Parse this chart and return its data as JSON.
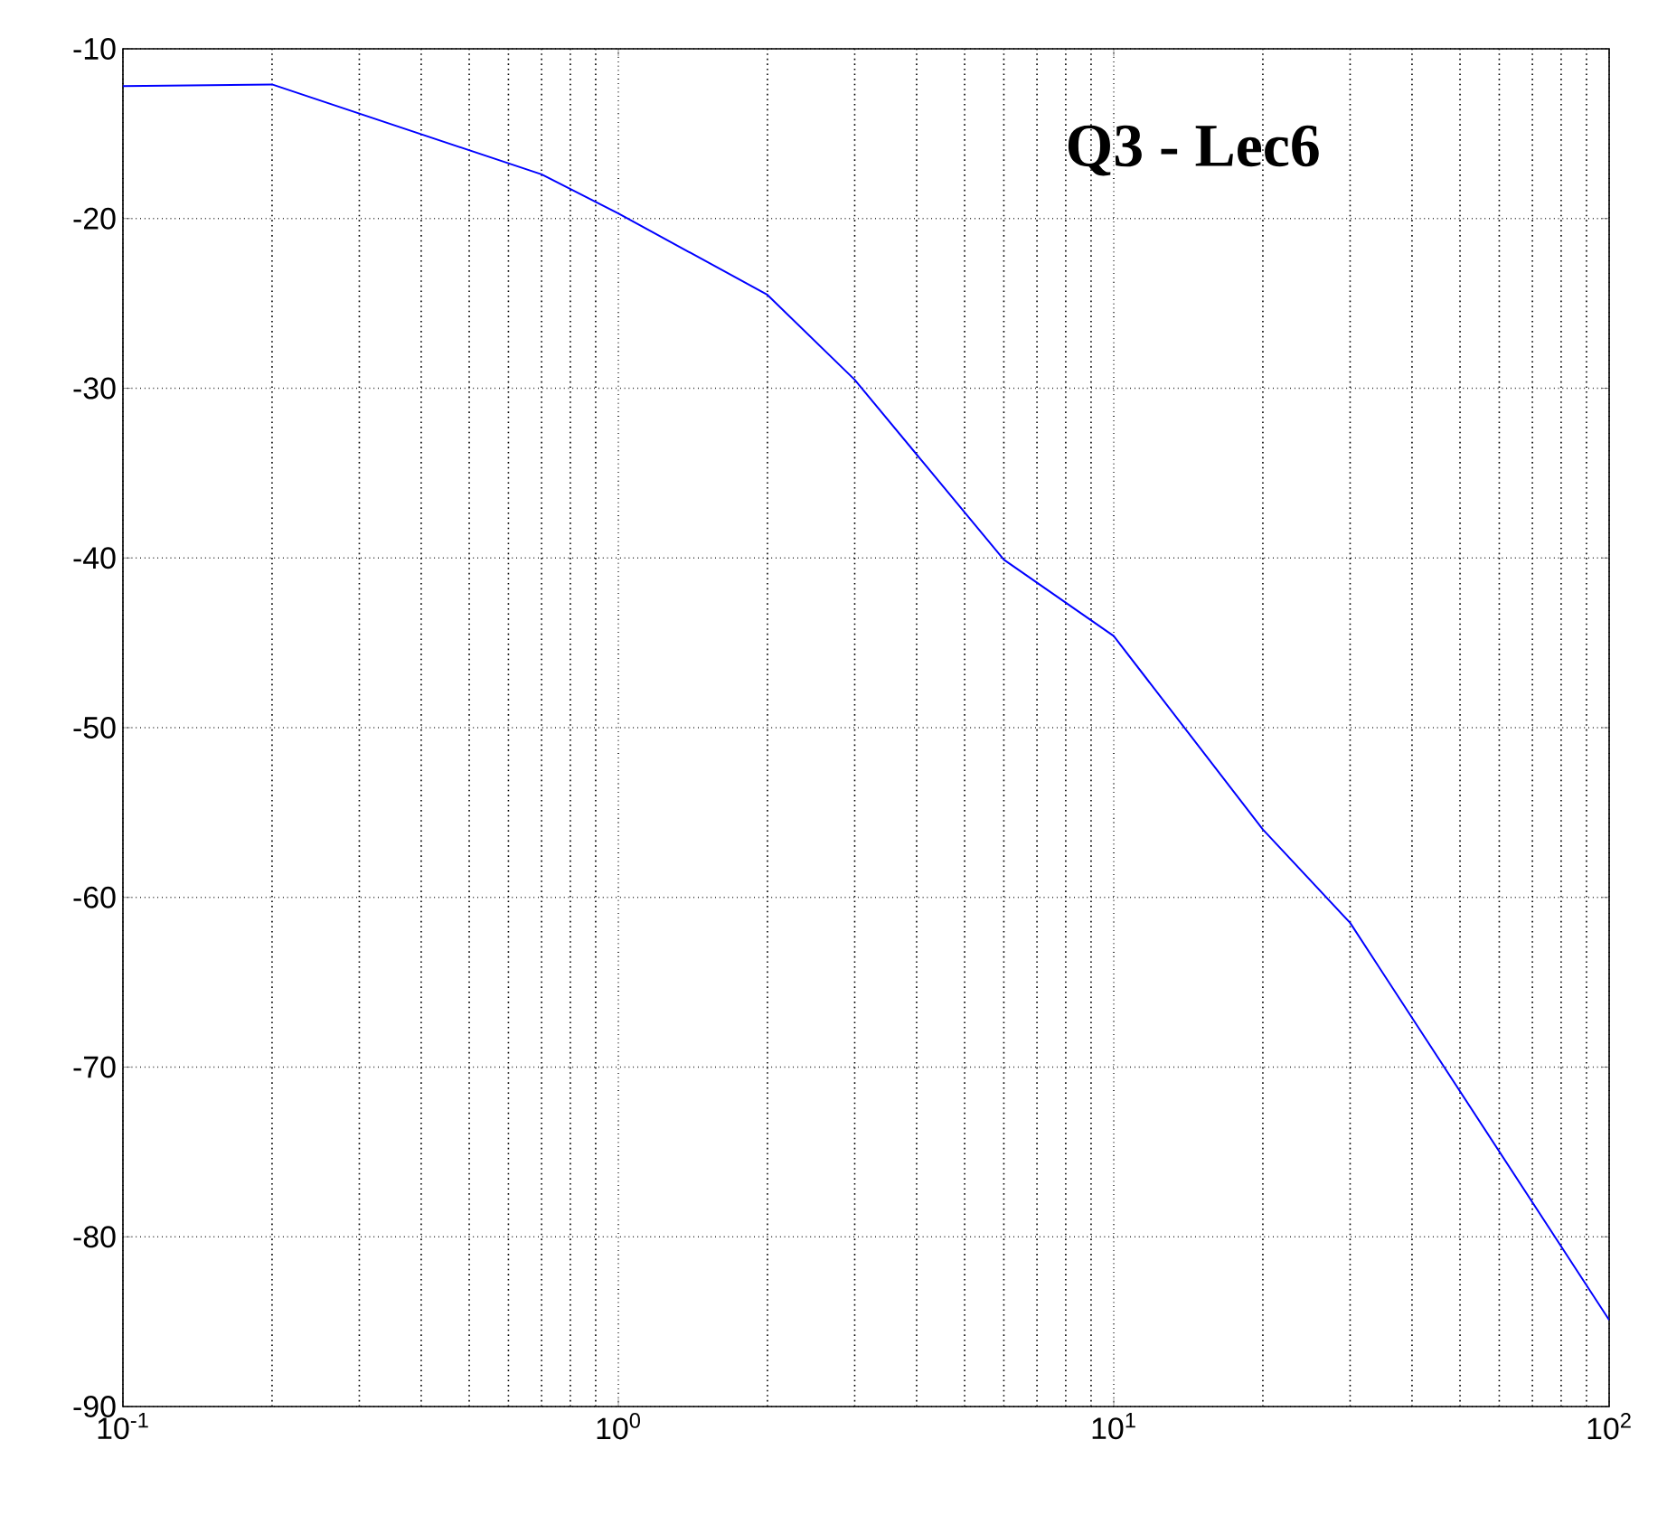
{
  "chart_data": {
    "type": "line",
    "annotations": [
      "Q3 - Lec6"
    ],
    "x": [
      0.1,
      0.2,
      0.7,
      1,
      2,
      3,
      6,
      10,
      20,
      30,
      100
    ],
    "series": [
      {
        "color": "#0000ff",
        "values": [
          -12.2,
          -12.1,
          -17.4,
          -19.7,
          -24.5,
          -29.5,
          -40.1,
          -44.6,
          -56,
          -61.5,
          -84.9
        ]
      }
    ],
    "log": "x",
    "xlim": [
      0.1,
      100
    ],
    "ylim": [
      -90,
      -10
    ],
    "xticks": [
      {
        "value": 0.1,
        "label": "10$^{-1}$"
      },
      {
        "value": 1,
        "label": "10$^{0}$"
      },
      {
        "value": 10,
        "label": "10$^{1}$"
      },
      {
        "value": 100,
        "label": "10$^{2}$"
      }
    ],
    "yticks": [
      -90,
      -80,
      -70,
      -60,
      -50,
      -40,
      -30,
      -20,
      -10
    ],
    "grid": true,
    "line_style": "solid",
    "marker": "none"
  }
}
